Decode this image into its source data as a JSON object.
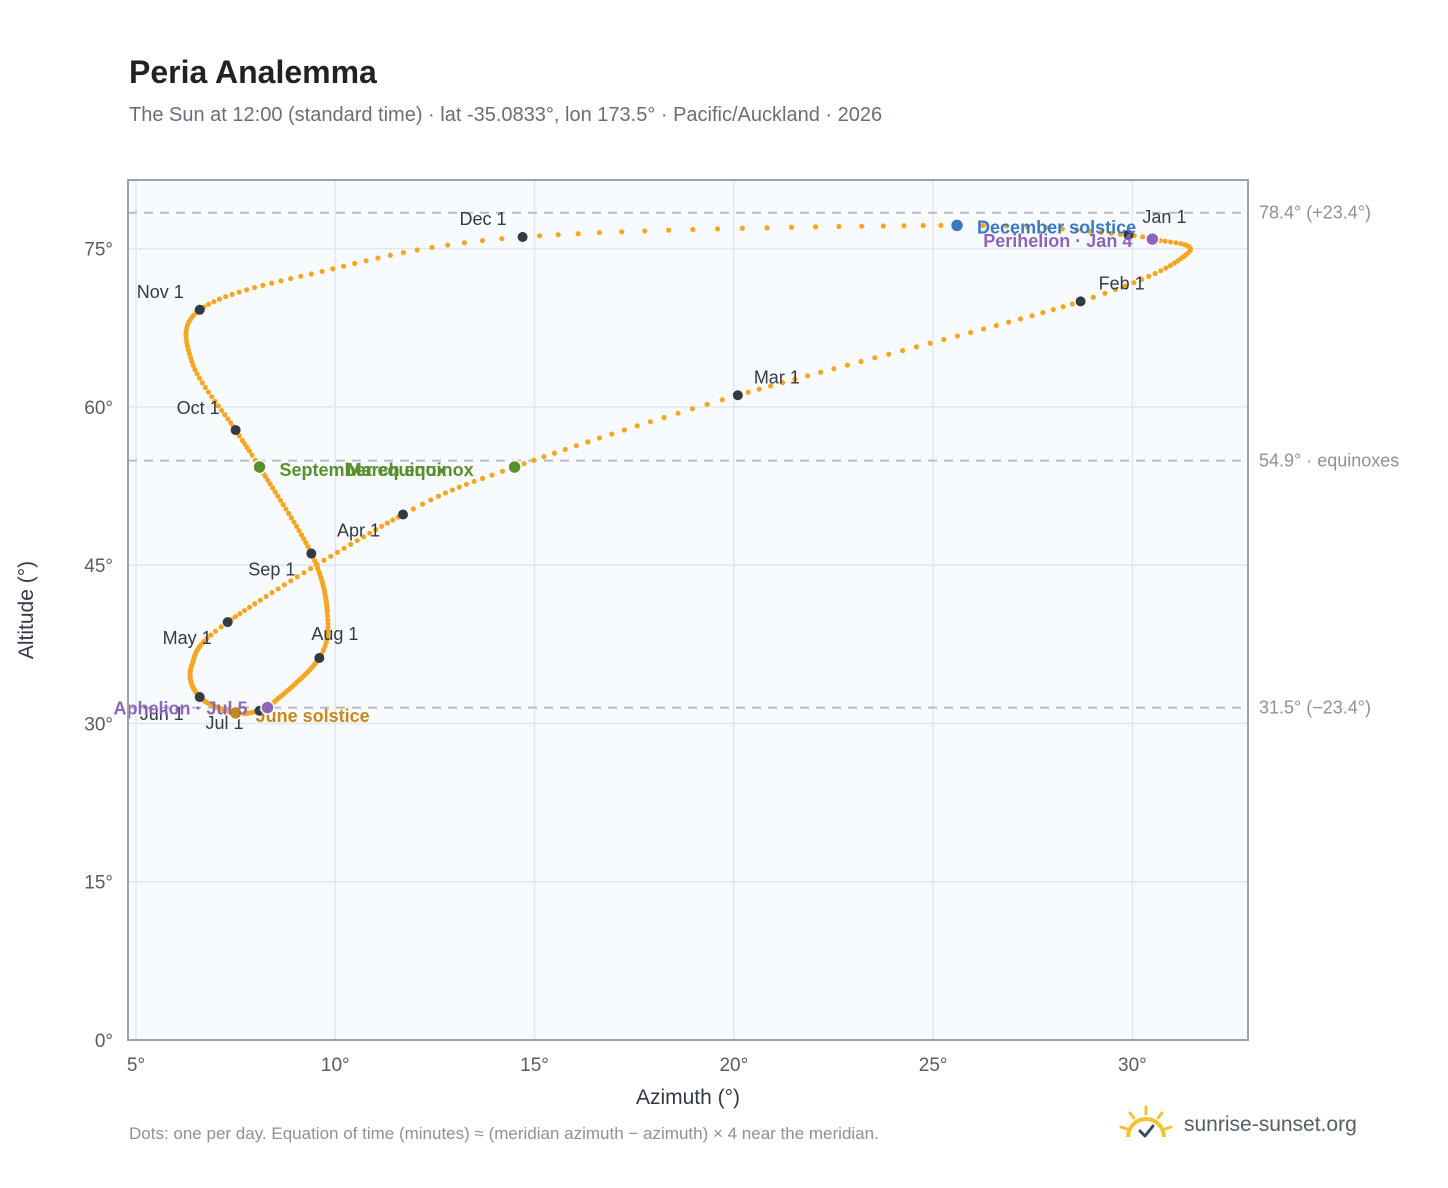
{
  "header": {
    "title": "Peria Analemma",
    "subtitle": "The Sun at 12:00 (standard time) · lat -35.0833°, lon 173.5° · Pacific/Auckland · 2026"
  },
  "footer": {
    "note": "Dots: one per day. Equation of time (minutes) ≈ (meridian azimuth − azimuth) × 4 near the meridian.",
    "brand": "sunrise-sunset.org",
    "brand_icon": "sun-logo-icon"
  },
  "colors": {
    "path": "#f5a623",
    "month_marker": "#333a44",
    "equinox": "#5a8f2e",
    "december_solstice": "#3a78c2",
    "june_solstice": "#c8881a",
    "apsis": "#8e65b8",
    "plot_bg": "#f8fbfe",
    "grid": "#e1e7ee",
    "frame": "#9aa3ae",
    "reference_line": "#b6bdc6"
  },
  "chart_data": {
    "type": "scatter",
    "title": "Peria Analemma",
    "xlabel": "Azimuth (°)",
    "ylabel": "Altitude (°)",
    "xlim": [
      4.8,
      32.9
    ],
    "ylim": [
      0,
      81.5
    ],
    "x_ticks": [
      5,
      10,
      15,
      20,
      25,
      30
    ],
    "x_tick_labels": [
      "5°",
      "10°",
      "15°",
      "20°",
      "25°",
      "30°"
    ],
    "y_ticks": [
      0,
      15,
      30,
      45,
      60,
      75
    ],
    "y_tick_labels": [
      "0°",
      "15°",
      "30°",
      "45°",
      "60°",
      "75°"
    ],
    "grid": true,
    "reference_lines": [
      {
        "altitude": 78.4,
        "label": "78.4° (+23.4°)"
      },
      {
        "altitude": 54.9,
        "label": "54.9° · equinoxes"
      },
      {
        "altitude": 31.5,
        "label": "31.5° (−23.4°)"
      }
    ],
    "daily_path": {
      "description": "one dot per day",
      "anchors": [
        {
          "day": 1,
          "x": 29.9,
          "y": 76.3
        },
        {
          "day": 4,
          "x": 30.5,
          "y": 75.9
        },
        {
          "day": 15,
          "x": 31.4,
          "y": 74.6
        },
        {
          "day": 32,
          "x": 28.7,
          "y": 70.0
        },
        {
          "day": 60,
          "x": 20.1,
          "y": 61.1
        },
        {
          "day": 78,
          "x": 14.5,
          "y": 54.3
        },
        {
          "day": 91,
          "x": 11.7,
          "y": 49.8
        },
        {
          "day": 121,
          "x": 7.3,
          "y": 39.6
        },
        {
          "day": 136,
          "x": 6.4,
          "y": 35.5
        },
        {
          "day": 152,
          "x": 6.6,
          "y": 32.5
        },
        {
          "day": 172,
          "x": 7.5,
          "y": 31.0
        },
        {
          "day": 182,
          "x": 8.1,
          "y": 31.2
        },
        {
          "day": 186,
          "x": 8.3,
          "y": 31.5
        },
        {
          "day": 213,
          "x": 9.6,
          "y": 36.2
        },
        {
          "day": 225,
          "x": 9.8,
          "y": 40.6
        },
        {
          "day": 244,
          "x": 9.4,
          "y": 46.1
        },
        {
          "day": 266,
          "x": 8.1,
          "y": 54.3
        },
        {
          "day": 274,
          "x": 7.5,
          "y": 57.8
        },
        {
          "day": 290,
          "x": 6.4,
          "y": 64.3
        },
        {
          "day": 305,
          "x": 6.6,
          "y": 69.2
        },
        {
          "day": 320,
          "x": 9.4,
          "y": 72.6
        },
        {
          "day": 335,
          "x": 14.7,
          "y": 76.1
        },
        {
          "day": 355,
          "x": 25.6,
          "y": 77.2
        },
        {
          "day": 366,
          "x": 29.9,
          "y": 76.3
        }
      ]
    },
    "month_markers": [
      {
        "label": "Jan 1",
        "x": 29.9,
        "y": 76.3
      },
      {
        "label": "Feb 1",
        "x": 28.7,
        "y": 70.0
      },
      {
        "label": "Mar 1",
        "x": 20.1,
        "y": 61.1
      },
      {
        "label": "Apr 1",
        "x": 11.7,
        "y": 49.8
      },
      {
        "label": "May 1",
        "x": 7.3,
        "y": 39.6
      },
      {
        "label": "Jun 1",
        "x": 6.6,
        "y": 32.5
      },
      {
        "label": "Jul 1",
        "x": 8.1,
        "y": 31.2
      },
      {
        "label": "Aug 1",
        "x": 9.6,
        "y": 36.2
      },
      {
        "label": "Sep 1",
        "x": 9.4,
        "y": 46.1
      },
      {
        "label": "Oct 1",
        "x": 7.5,
        "y": 57.8
      },
      {
        "label": "Nov 1",
        "x": 6.6,
        "y": 69.2
      },
      {
        "label": "Dec 1",
        "x": 14.7,
        "y": 76.1
      }
    ],
    "events": [
      {
        "label": "March equinox",
        "x": 14.5,
        "y": 54.3,
        "kind": "equinox"
      },
      {
        "label": "September equinox",
        "x": 8.1,
        "y": 54.3,
        "kind": "equinox"
      },
      {
        "label": "December solstice",
        "x": 25.6,
        "y": 77.2,
        "kind": "december_solstice"
      },
      {
        "label": "June solstice",
        "x": 7.5,
        "y": 31.0,
        "kind": "june_solstice"
      },
      {
        "label": "Perihelion · Jan 4",
        "x": 30.5,
        "y": 75.9,
        "kind": "apsis"
      },
      {
        "label": "Aphelion · Jul 5",
        "x": 8.3,
        "y": 31.5,
        "kind": "apsis"
      }
    ]
  }
}
